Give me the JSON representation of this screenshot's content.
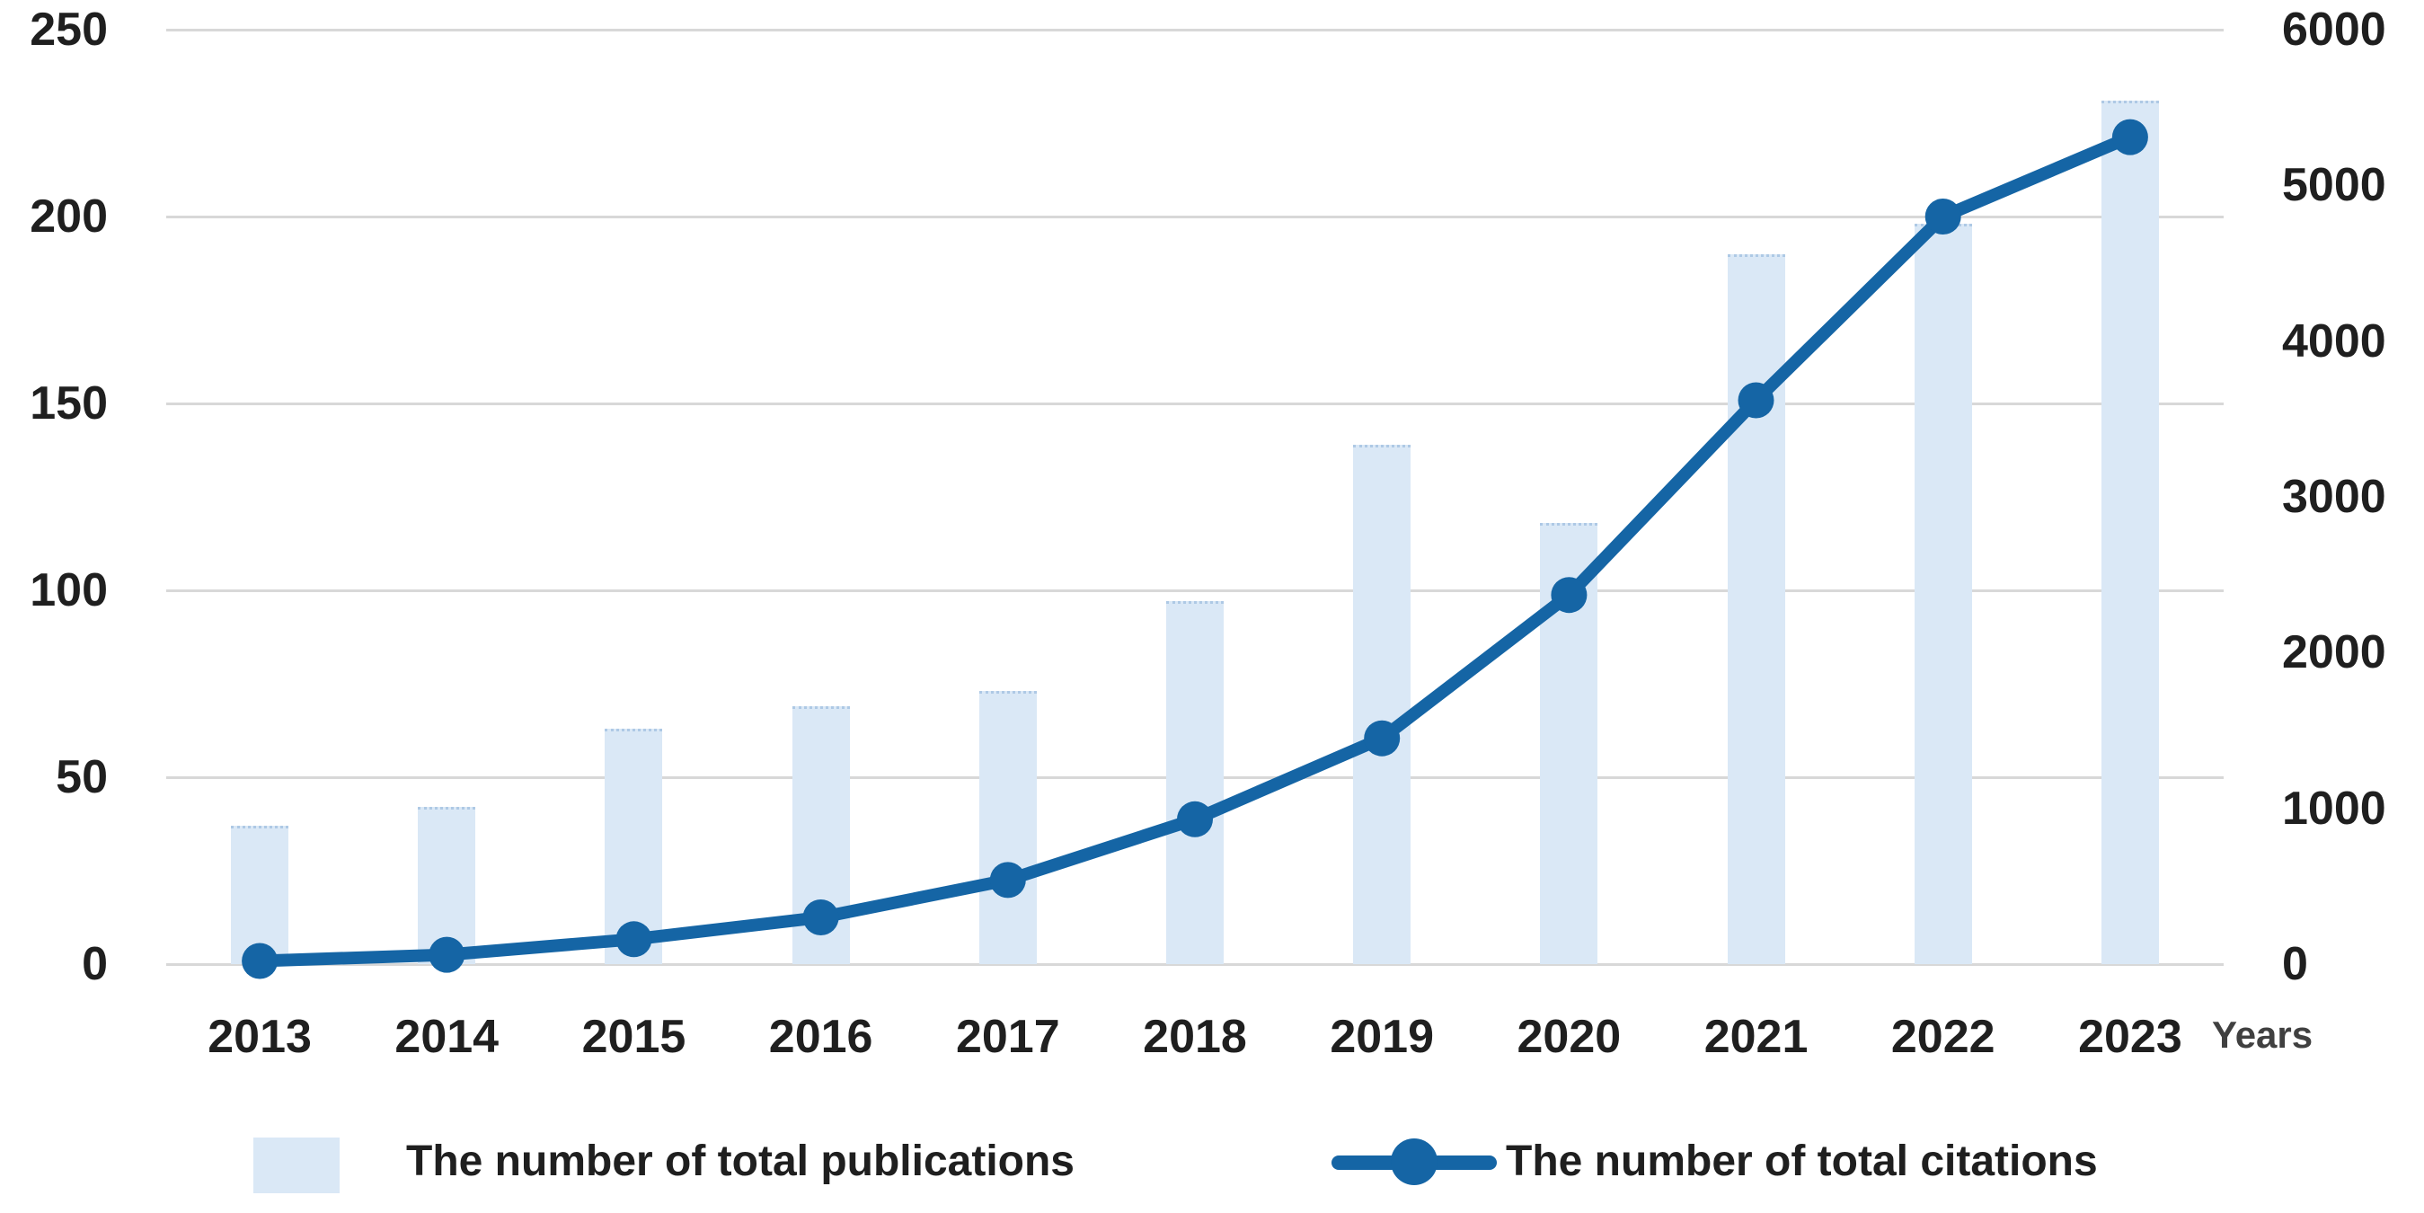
{
  "chart_data": {
    "type": "bar+line",
    "categories": [
      "2013",
      "2014",
      "2015",
      "2016",
      "2017",
      "2018",
      "2019",
      "2020",
      "2021",
      "2022",
      "2023"
    ],
    "series": [
      {
        "name": "The number of total publications",
        "type": "bar",
        "axis": "left",
        "values": [
          37,
          42,
          63,
          69,
          73,
          97,
          139,
          118,
          190,
          198,
          231
        ]
      },
      {
        "name": "The number of total citations",
        "type": "line",
        "axis": "right",
        "values": [
          20,
          60,
          160,
          300,
          540,
          930,
          1450,
          2370,
          3620,
          4800,
          5310
        ]
      }
    ],
    "left_axis": {
      "min": 0,
      "max": 250,
      "ticks": [
        0,
        50,
        100,
        150,
        200,
        250
      ]
    },
    "right_axis": {
      "min": 0,
      "max": 6000,
      "ticks": [
        0,
        1000,
        2000,
        3000,
        4000,
        5000,
        6000
      ]
    },
    "x_axis": {
      "title": "Years"
    },
    "grid": "horizontal",
    "legend_position": "bottom",
    "colors": {
      "bar_fill": "#dae8f6",
      "line": "#1565a5",
      "grid": "#d8d8d8",
      "tick_text": "#1f1f1f",
      "axis_title_text": "#404040"
    }
  }
}
